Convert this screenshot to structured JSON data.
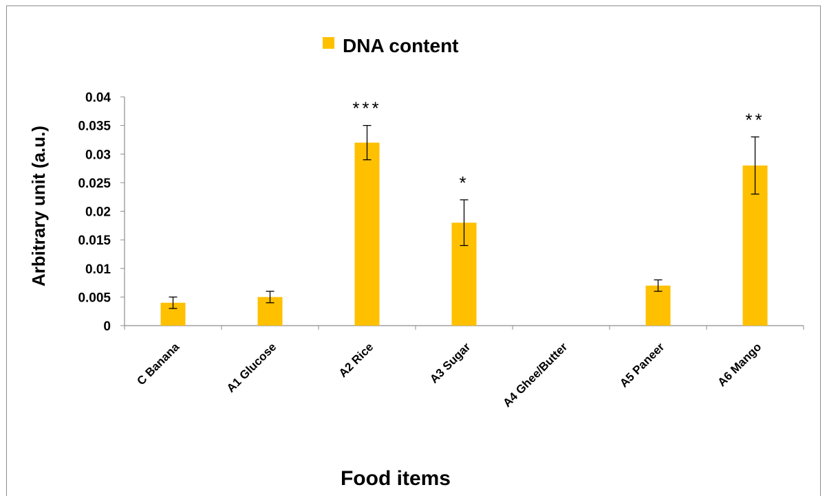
{
  "chart_data": {
    "type": "bar",
    "legend_position": "top-center",
    "grid": false,
    "xlabel": "Food items",
    "ylabel": "Arbitrary unit (a.u.)",
    "ylim": [
      0,
      0.04
    ],
    "yticks": [
      "0",
      "0.005",
      "0.01",
      "0.015",
      "0.02",
      "0.025",
      "0.03",
      "0.035",
      "0.04"
    ],
    "categories": [
      "C Banana",
      "A1 Glucose",
      "A2  Rice",
      "A3 Sugar",
      "A4 Ghee/Butter",
      "A5 Paneer",
      "A6 Mango"
    ],
    "series": [
      {
        "name": "DNA content",
        "color": "#FFC000",
        "values": [
          0.004,
          0.005,
          0.032,
          0.018,
          0,
          0.007,
          0.028
        ],
        "error": [
          0.001,
          0.001,
          0.003,
          0.004,
          0,
          0.001,
          0.005
        ]
      }
    ],
    "annotations": [
      "",
      "",
      "***",
      "*",
      "",
      "",
      "**"
    ]
  }
}
